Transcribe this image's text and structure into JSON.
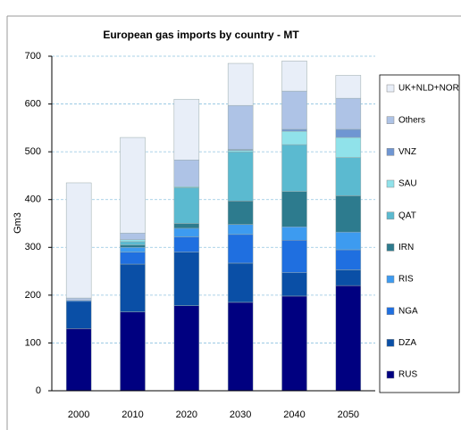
{
  "chart_data": {
    "type": "bar",
    "stacked": true,
    "title": "European gas imports by country - MT",
    "y_label": "Gm3",
    "categories": [
      "2000",
      "2010",
      "2020",
      "2030",
      "2040",
      "2050"
    ],
    "series": [
      {
        "name": "RUS",
        "color": "#000080",
        "values": [
          130,
          165,
          178,
          185,
          198,
          220
        ]
      },
      {
        "name": "DZA",
        "color": "#0a4fa6",
        "values": [
          57,
          100,
          112,
          82,
          49,
          33
        ]
      },
      {
        "name": "NGA",
        "color": "#1f6fe0",
        "values": [
          2,
          25,
          32,
          60,
          68,
          42
        ]
      },
      {
        "name": "RIS",
        "color": "#3d9bf0",
        "values": [
          0,
          10,
          18,
          21,
          28,
          37
        ]
      },
      {
        "name": "IRN",
        "color": "#2d7b8e",
        "values": [
          0,
          5,
          10,
          49,
          74,
          76
        ]
      },
      {
        "name": "QAT",
        "color": "#5bbad0",
        "values": [
          0,
          7,
          75,
          103,
          98,
          80
        ]
      },
      {
        "name": "SAU",
        "color": "#90e2ea",
        "values": [
          0,
          4,
          2,
          3,
          28,
          42
        ]
      },
      {
        "name": "VNZ",
        "color": "#6f96d2",
        "values": [
          0,
          0,
          0,
          2,
          4,
          17
        ]
      },
      {
        "name": "Others",
        "color": "#aec3e6",
        "values": [
          5,
          14,
          56,
          92,
          80,
          65
        ]
      },
      {
        "name": "UK+NLD+NOR",
        "color": "#e8eef8",
        "values": [
          241,
          200,
          127,
          88,
          63,
          48
        ]
      }
    ],
    "ylim": [
      0,
      700
    ],
    "yticks": [
      0,
      100,
      200,
      300,
      400,
      500,
      600,
      700
    ],
    "grid": true,
    "legend": "right"
  }
}
